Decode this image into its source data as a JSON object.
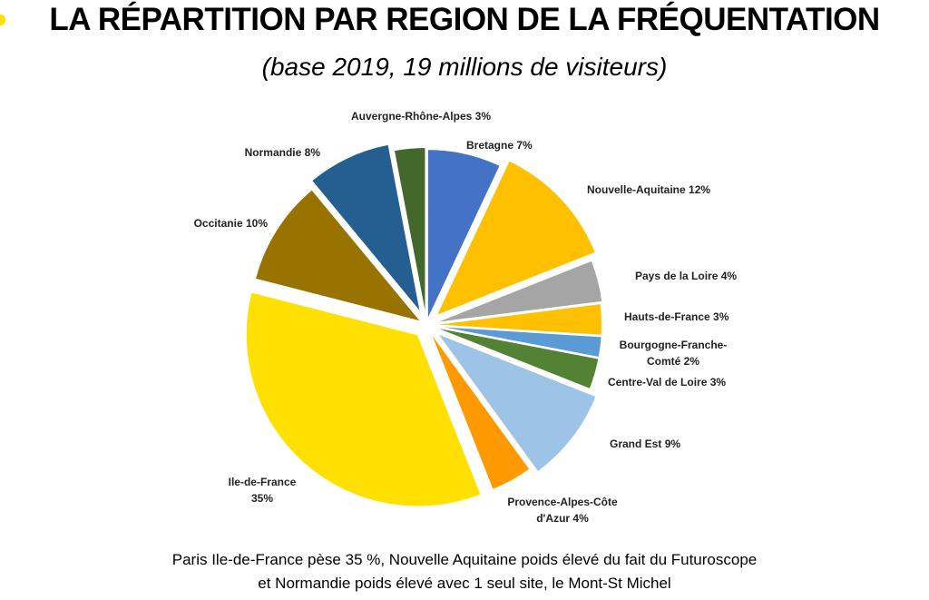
{
  "chart_data": {
    "type": "pie",
    "title": "LA RÉPARTITION PAR REGION DE LA FRÉQUENTATION",
    "subtitle": "(base 2019, 19 millions de visiteurs)",
    "categories": [
      "Bretagne",
      "Nouvelle-Aquitaine",
      "Pays de la Loire",
      "Hauts-de-France",
      "Bourgogne-Franche-Comté",
      "Centre-Val de Loire",
      "Grand Est",
      "Provence-Alpes-Côte d'Azur",
      "Ile-de-France",
      "Occitanie",
      "Normandie",
      "Auvergne-Rhône-Alpes"
    ],
    "values": [
      7,
      12,
      4,
      3,
      2,
      3,
      9,
      4,
      35,
      10,
      8,
      3
    ],
    "value_labels": [
      "7%",
      "12%",
      "4%",
      "3%",
      "2%",
      "3%",
      "9%",
      "4%",
      "35%",
      "10%",
      "8%",
      "3%"
    ],
    "colors": [
      "#4472c4",
      "#ffc000",
      "#a5a5a5",
      "#ffc000",
      "#5b9bd5",
      "#548235",
      "#9dc3e6",
      "#ff9900",
      "#ffe000",
      "#997300",
      "#255e91",
      "#43682b"
    ],
    "footnote": [
      "Paris Ile-de-France pèse 35 %, Nouvelle Aquitaine poids élevé du fait du Futuroscope",
      "et Normandie poids élevé avec 1 seul site, le Mont-St Michel"
    ]
  }
}
